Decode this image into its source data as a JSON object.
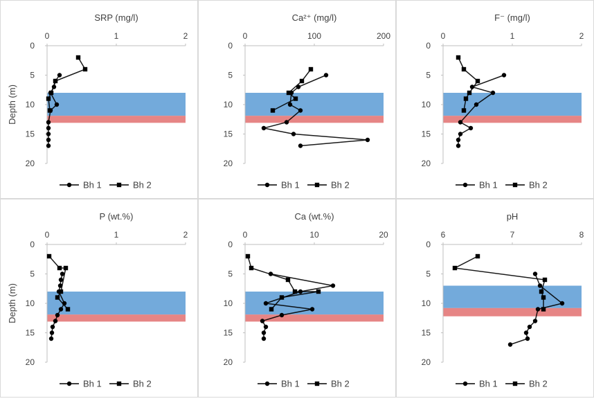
{
  "chart_data": [
    {
      "type": "line",
      "title": "SRP (mg/l)",
      "ylabel": "Depth (m)",
      "xlim": [
        0,
        2
      ],
      "x_ticks": [
        0,
        1,
        2
      ],
      "x_tick_labels": [
        "0",
        "1",
        "2"
      ],
      "ylim": [
        0,
        20
      ],
      "y_ticks": [
        0,
        5,
        10,
        15,
        20
      ],
      "y_tick_labels": [
        "0",
        "5",
        "10",
        "15",
        "20"
      ],
      "bands": [
        {
          "from": 8,
          "to": 11.9,
          "color": "#5b9bd5"
        },
        {
          "from": 11.9,
          "to": 13.1,
          "color": "#e06666"
        }
      ],
      "series": [
        {
          "name": "Bh 1",
          "marker": "circle",
          "points": [
            [
              0.18,
              5
            ],
            [
              0.12,
              6
            ],
            [
              0.1,
              7
            ],
            [
              0.05,
              8
            ],
            [
              0.14,
              10
            ],
            [
              0.05,
              11
            ],
            [
              0.02,
              13
            ],
            [
              0.02,
              14
            ],
            [
              0.02,
              15
            ],
            [
              0.02,
              16
            ],
            [
              0.02,
              17
            ]
          ]
        },
        {
          "name": "Bh 2",
          "marker": "square",
          "points": [
            [
              0.45,
              2
            ],
            [
              0.55,
              4
            ],
            [
              0.12,
              6
            ],
            [
              0.06,
              8
            ],
            [
              0.02,
              9
            ],
            [
              0.04,
              11
            ]
          ]
        }
      ],
      "legend": [
        "Bh 1",
        "Bh 2"
      ]
    },
    {
      "type": "line",
      "title": "Ca²⁺ (mg/l)",
      "ylabel": "",
      "xlim": [
        0,
        200
      ],
      "x_ticks": [
        0,
        100,
        200
      ],
      "x_tick_labels": [
        "0",
        "100",
        "200"
      ],
      "ylim": [
        0,
        20
      ],
      "y_ticks": [
        0,
        5,
        10,
        15,
        20
      ],
      "y_tick_labels": [
        "0",
        "5",
        "10",
        "15",
        "20"
      ],
      "bands": [
        {
          "from": 8,
          "to": 11.9,
          "color": "#5b9bd5"
        },
        {
          "from": 11.9,
          "to": 13.1,
          "color": "#e06666"
        }
      ],
      "series": [
        {
          "name": "Bh 1",
          "marker": "circle",
          "points": [
            [
              117,
              5
            ],
            [
              77,
              7
            ],
            [
              67,
              8
            ],
            [
              65,
              10
            ],
            [
              80,
              11
            ],
            [
              60,
              13
            ],
            [
              27,
              14
            ],
            [
              70,
              15
            ],
            [
              177,
              16
            ],
            [
              80,
              17
            ]
          ]
        },
        {
          "name": "Bh 2",
          "marker": "square",
          "points": [
            [
              95,
              4
            ],
            [
              82,
              6
            ],
            [
              63,
              8
            ],
            [
              73,
              9
            ],
            [
              40,
              11
            ]
          ]
        }
      ],
      "legend": [
        "Bh 1",
        "Bh 2"
      ]
    },
    {
      "type": "line",
      "title": "F⁻ (mg/l)",
      "ylabel": "",
      "xlim": [
        0,
        2
      ],
      "x_ticks": [
        0,
        1,
        2
      ],
      "x_tick_labels": [
        "0",
        "1",
        "2"
      ],
      "ylim": [
        0,
        20
      ],
      "y_ticks": [
        0,
        5,
        10,
        15,
        20
      ],
      "y_tick_labels": [
        "0",
        "5",
        "10",
        "15",
        "20"
      ],
      "bands": [
        {
          "from": 8,
          "to": 11.9,
          "color": "#5b9bd5"
        },
        {
          "from": 11.9,
          "to": 13.1,
          "color": "#e06666"
        }
      ],
      "series": [
        {
          "name": "Bh 1",
          "marker": "circle",
          "points": [
            [
              0.88,
              5
            ],
            [
              0.42,
              7
            ],
            [
              0.72,
              8
            ],
            [
              0.48,
              10
            ],
            [
              0.25,
              13
            ],
            [
              0.4,
              14
            ],
            [
              0.25,
              15
            ],
            [
              0.22,
              16
            ],
            [
              0.22,
              17
            ]
          ]
        },
        {
          "name": "Bh 2",
          "marker": "square",
          "points": [
            [
              0.22,
              2
            ],
            [
              0.3,
              4
            ],
            [
              0.5,
              6
            ],
            [
              0.38,
              8
            ],
            [
              0.33,
              9
            ],
            [
              0.3,
              11
            ]
          ]
        }
      ],
      "legend": [
        "Bh 1",
        "Bh 2"
      ]
    },
    {
      "type": "line",
      "title": "P (wt.%)",
      "ylabel": "Depth (m)",
      "xlim": [
        0,
        2
      ],
      "x_ticks": [
        0,
        1,
        2
      ],
      "x_tick_labels": [
        "0",
        "1",
        "2"
      ],
      "ylim": [
        0,
        20
      ],
      "y_ticks": [
        0,
        5,
        10,
        15,
        20
      ],
      "y_tick_labels": [
        "0",
        "5",
        "10",
        "15",
        "20"
      ],
      "bands": [
        {
          "from": 8,
          "to": 11.9,
          "color": "#5b9bd5"
        },
        {
          "from": 11.9,
          "to": 13.1,
          "color": "#e06666"
        }
      ],
      "series": [
        {
          "name": "Bh 1",
          "marker": "circle",
          "points": [
            [
              0.22,
              5
            ],
            [
              0.2,
              6
            ],
            [
              0.19,
              7
            ],
            [
              0.17,
              8
            ],
            [
              0.25,
              10
            ],
            [
              0.2,
              11
            ],
            [
              0.15,
              12
            ],
            [
              0.12,
              13
            ],
            [
              0.08,
              14
            ],
            [
              0.07,
              15
            ],
            [
              0.06,
              16
            ]
          ]
        },
        {
          "name": "Bh 2",
          "marker": "square",
          "points": [
            [
              0.03,
              2
            ],
            [
              0.18,
              4
            ],
            [
              0.27,
              4
            ],
            [
              0.2,
              8
            ],
            [
              0.15,
              9
            ],
            [
              0.3,
              11
            ]
          ]
        }
      ],
      "legend": [
        "Bh 1",
        "Bh 2"
      ]
    },
    {
      "type": "line",
      "title": "Ca (wt.%)",
      "ylabel": "",
      "xlim": [
        0,
        20
      ],
      "x_ticks": [
        0,
        10,
        20
      ],
      "x_tick_labels": [
        "0",
        "10",
        "20"
      ],
      "ylim": [
        0,
        20
      ],
      "y_ticks": [
        0,
        5,
        10,
        15,
        20
      ],
      "y_tick_labels": [
        "0",
        "5",
        "10",
        "15",
        "20"
      ],
      "bands": [
        {
          "from": 8,
          "to": 11.9,
          "color": "#5b9bd5"
        },
        {
          "from": 11.9,
          "to": 13.1,
          "color": "#e06666"
        }
      ],
      "series": [
        {
          "name": "Bh 1",
          "marker": "circle",
          "points": [
            [
              3.7,
              5
            ],
            [
              12.7,
              7
            ],
            [
              8,
              8
            ],
            [
              3,
              10
            ],
            [
              9.7,
              11
            ],
            [
              5.3,
              12
            ],
            [
              2.5,
              13
            ],
            [
              3,
              14
            ],
            [
              2.7,
              15
            ],
            [
              2.7,
              16
            ]
          ]
        },
        {
          "name": "Bh 2",
          "marker": "square",
          "points": [
            [
              0.4,
              2
            ],
            [
              0.9,
              4
            ],
            [
              6.2,
              6
            ],
            [
              7.2,
              8
            ],
            [
              10.6,
              8
            ],
            [
              5.3,
              9
            ],
            [
              3.8,
              11
            ]
          ]
        }
      ],
      "legend": [
        "Bh 1",
        "Bh 2"
      ]
    },
    {
      "type": "line",
      "title": "pH",
      "ylabel": "",
      "xlim": [
        6,
        8
      ],
      "x_ticks": [
        6,
        7,
        8
      ],
      "x_tick_labels": [
        "6",
        "7",
        "8"
      ],
      "ylim": [
        0,
        20
      ],
      "y_ticks": [
        0,
        5,
        10,
        15,
        20
      ],
      "y_tick_labels": [
        "0",
        "5",
        "10",
        "15",
        "20"
      ],
      "bands": [
        {
          "from": 7,
          "to": 10.8,
          "color": "#5b9bd5"
        },
        {
          "from": 10.8,
          "to": 12.2,
          "color": "#e06666"
        }
      ],
      "series": [
        {
          "name": "Bh 1",
          "marker": "circle",
          "points": [
            [
              7.33,
              5
            ],
            [
              7.4,
              7
            ],
            [
              7.72,
              10
            ],
            [
              7.37,
              11
            ],
            [
              7.33,
              13
            ],
            [
              7.25,
              14
            ],
            [
              7.2,
              15
            ],
            [
              7.22,
              16
            ],
            [
              6.97,
              17
            ]
          ]
        },
        {
          "name": "Bh 2",
          "marker": "square",
          "points": [
            [
              6.5,
              2
            ],
            [
              6.17,
              4
            ],
            [
              7.47,
              6
            ],
            [
              7.42,
              8
            ],
            [
              7.45,
              9
            ],
            [
              7.45,
              11
            ]
          ]
        }
      ],
      "legend": [
        "Bh 1",
        "Bh 2"
      ]
    }
  ]
}
